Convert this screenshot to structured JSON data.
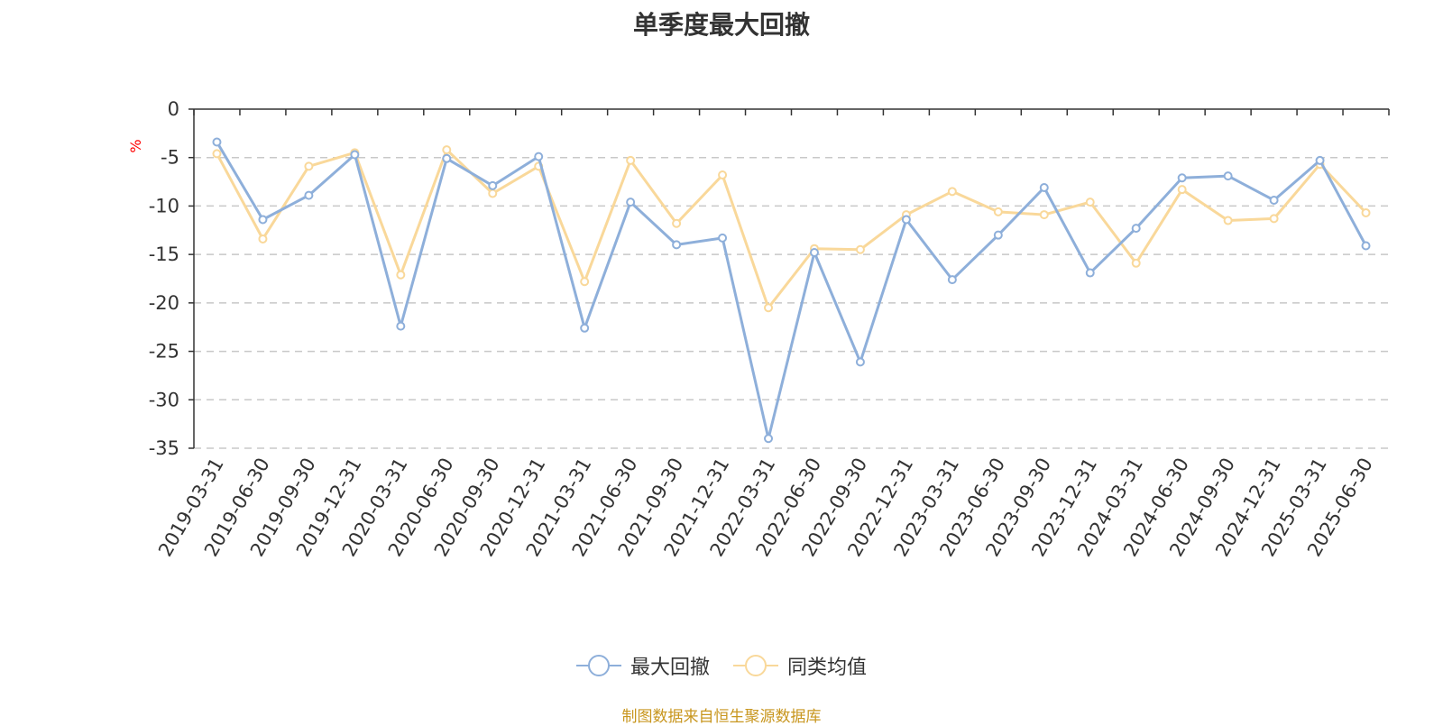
{
  "chart_data": {
    "type": "line",
    "title": "单季度最大回撤",
    "ylabel": "%",
    "ylim": [
      -35,
      0
    ],
    "yticks": [
      0,
      -5,
      -10,
      -15,
      -20,
      -25,
      -30,
      -35
    ],
    "grid": true,
    "legend_position": "bottom-center",
    "categories": [
      "2019-03-31",
      "2019-06-30",
      "2019-09-30",
      "2019-12-31",
      "2020-03-31",
      "2020-06-30",
      "2020-09-30",
      "2020-12-31",
      "2021-03-31",
      "2021-06-30",
      "2021-09-30",
      "2021-12-31",
      "2022-03-31",
      "2022-06-30",
      "2022-09-30",
      "2022-12-31",
      "2023-03-31",
      "2023-06-30",
      "2023-09-30",
      "2023-12-31",
      "2024-03-31",
      "2024-06-30",
      "2024-09-30",
      "2024-12-31",
      "2025-03-31",
      "2025-06-30"
    ],
    "series": [
      {
        "name": "最大回撤",
        "color": "#8eafda",
        "values": [
          -3.4,
          -11.4,
          -8.9,
          -4.7,
          -22.4,
          -5.1,
          -7.9,
          -4.9,
          -22.6,
          -9.6,
          -14.0,
          -13.3,
          -34.0,
          -14.8,
          -26.1,
          -11.4,
          -17.6,
          -13.0,
          -8.1,
          -16.9,
          -12.3,
          -7.1,
          -6.9,
          -9.4,
          -5.3,
          -14.1
        ]
      },
      {
        "name": "同类均值",
        "color": "#f9d89a",
        "values": [
          -4.6,
          -13.4,
          -5.9,
          -4.5,
          -17.1,
          -4.2,
          -8.7,
          -5.9,
          -17.8,
          -5.3,
          -11.8,
          -6.8,
          -20.5,
          -14.4,
          -14.5,
          -10.9,
          -8.5,
          -10.6,
          -10.9,
          -9.6,
          -15.9,
          -8.3,
          -11.5,
          -11.3,
          -5.7,
          -10.7
        ]
      }
    ]
  },
  "footer": {
    "source": "制图数据来自恒生聚源数据库"
  },
  "colors": {
    "axis": "#333333",
    "grid": "#c8c8c8",
    "ylabel": "#ff0000",
    "source": "#c8961e"
  }
}
